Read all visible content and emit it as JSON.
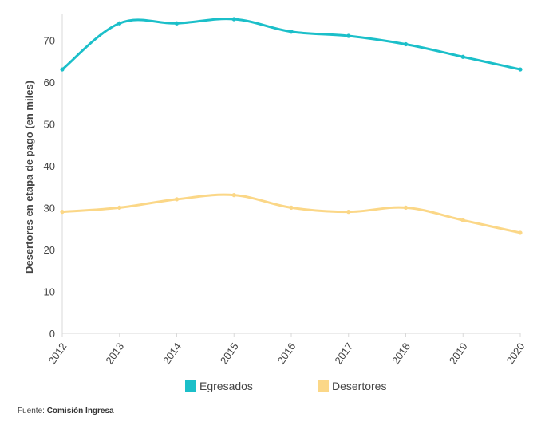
{
  "chart_data": {
    "type": "line",
    "x": [
      "2012",
      "2013",
      "2014",
      "2015",
      "2016",
      "2017",
      "2018",
      "2019",
      "2020"
    ],
    "ylabel": "Desertores en etapa de pago (en miles)",
    "xlabel": "",
    "ylim": [
      0,
      75
    ],
    "yticks": [
      0,
      10,
      20,
      30,
      40,
      50,
      60,
      70
    ],
    "grid": false,
    "legend_position": "bottom",
    "series": [
      {
        "name": "Egresados",
        "color": "#1bbfc9",
        "values": [
          63,
          74,
          74,
          75,
          72,
          71,
          69,
          66,
          63
        ]
      },
      {
        "name": "Desertores",
        "color": "#fbd787",
        "values": [
          29,
          30,
          32,
          33,
          30,
          29,
          30,
          27,
          24
        ]
      }
    ]
  },
  "source": {
    "label": "Fuente:",
    "name": "Comisión Ingresa"
  }
}
